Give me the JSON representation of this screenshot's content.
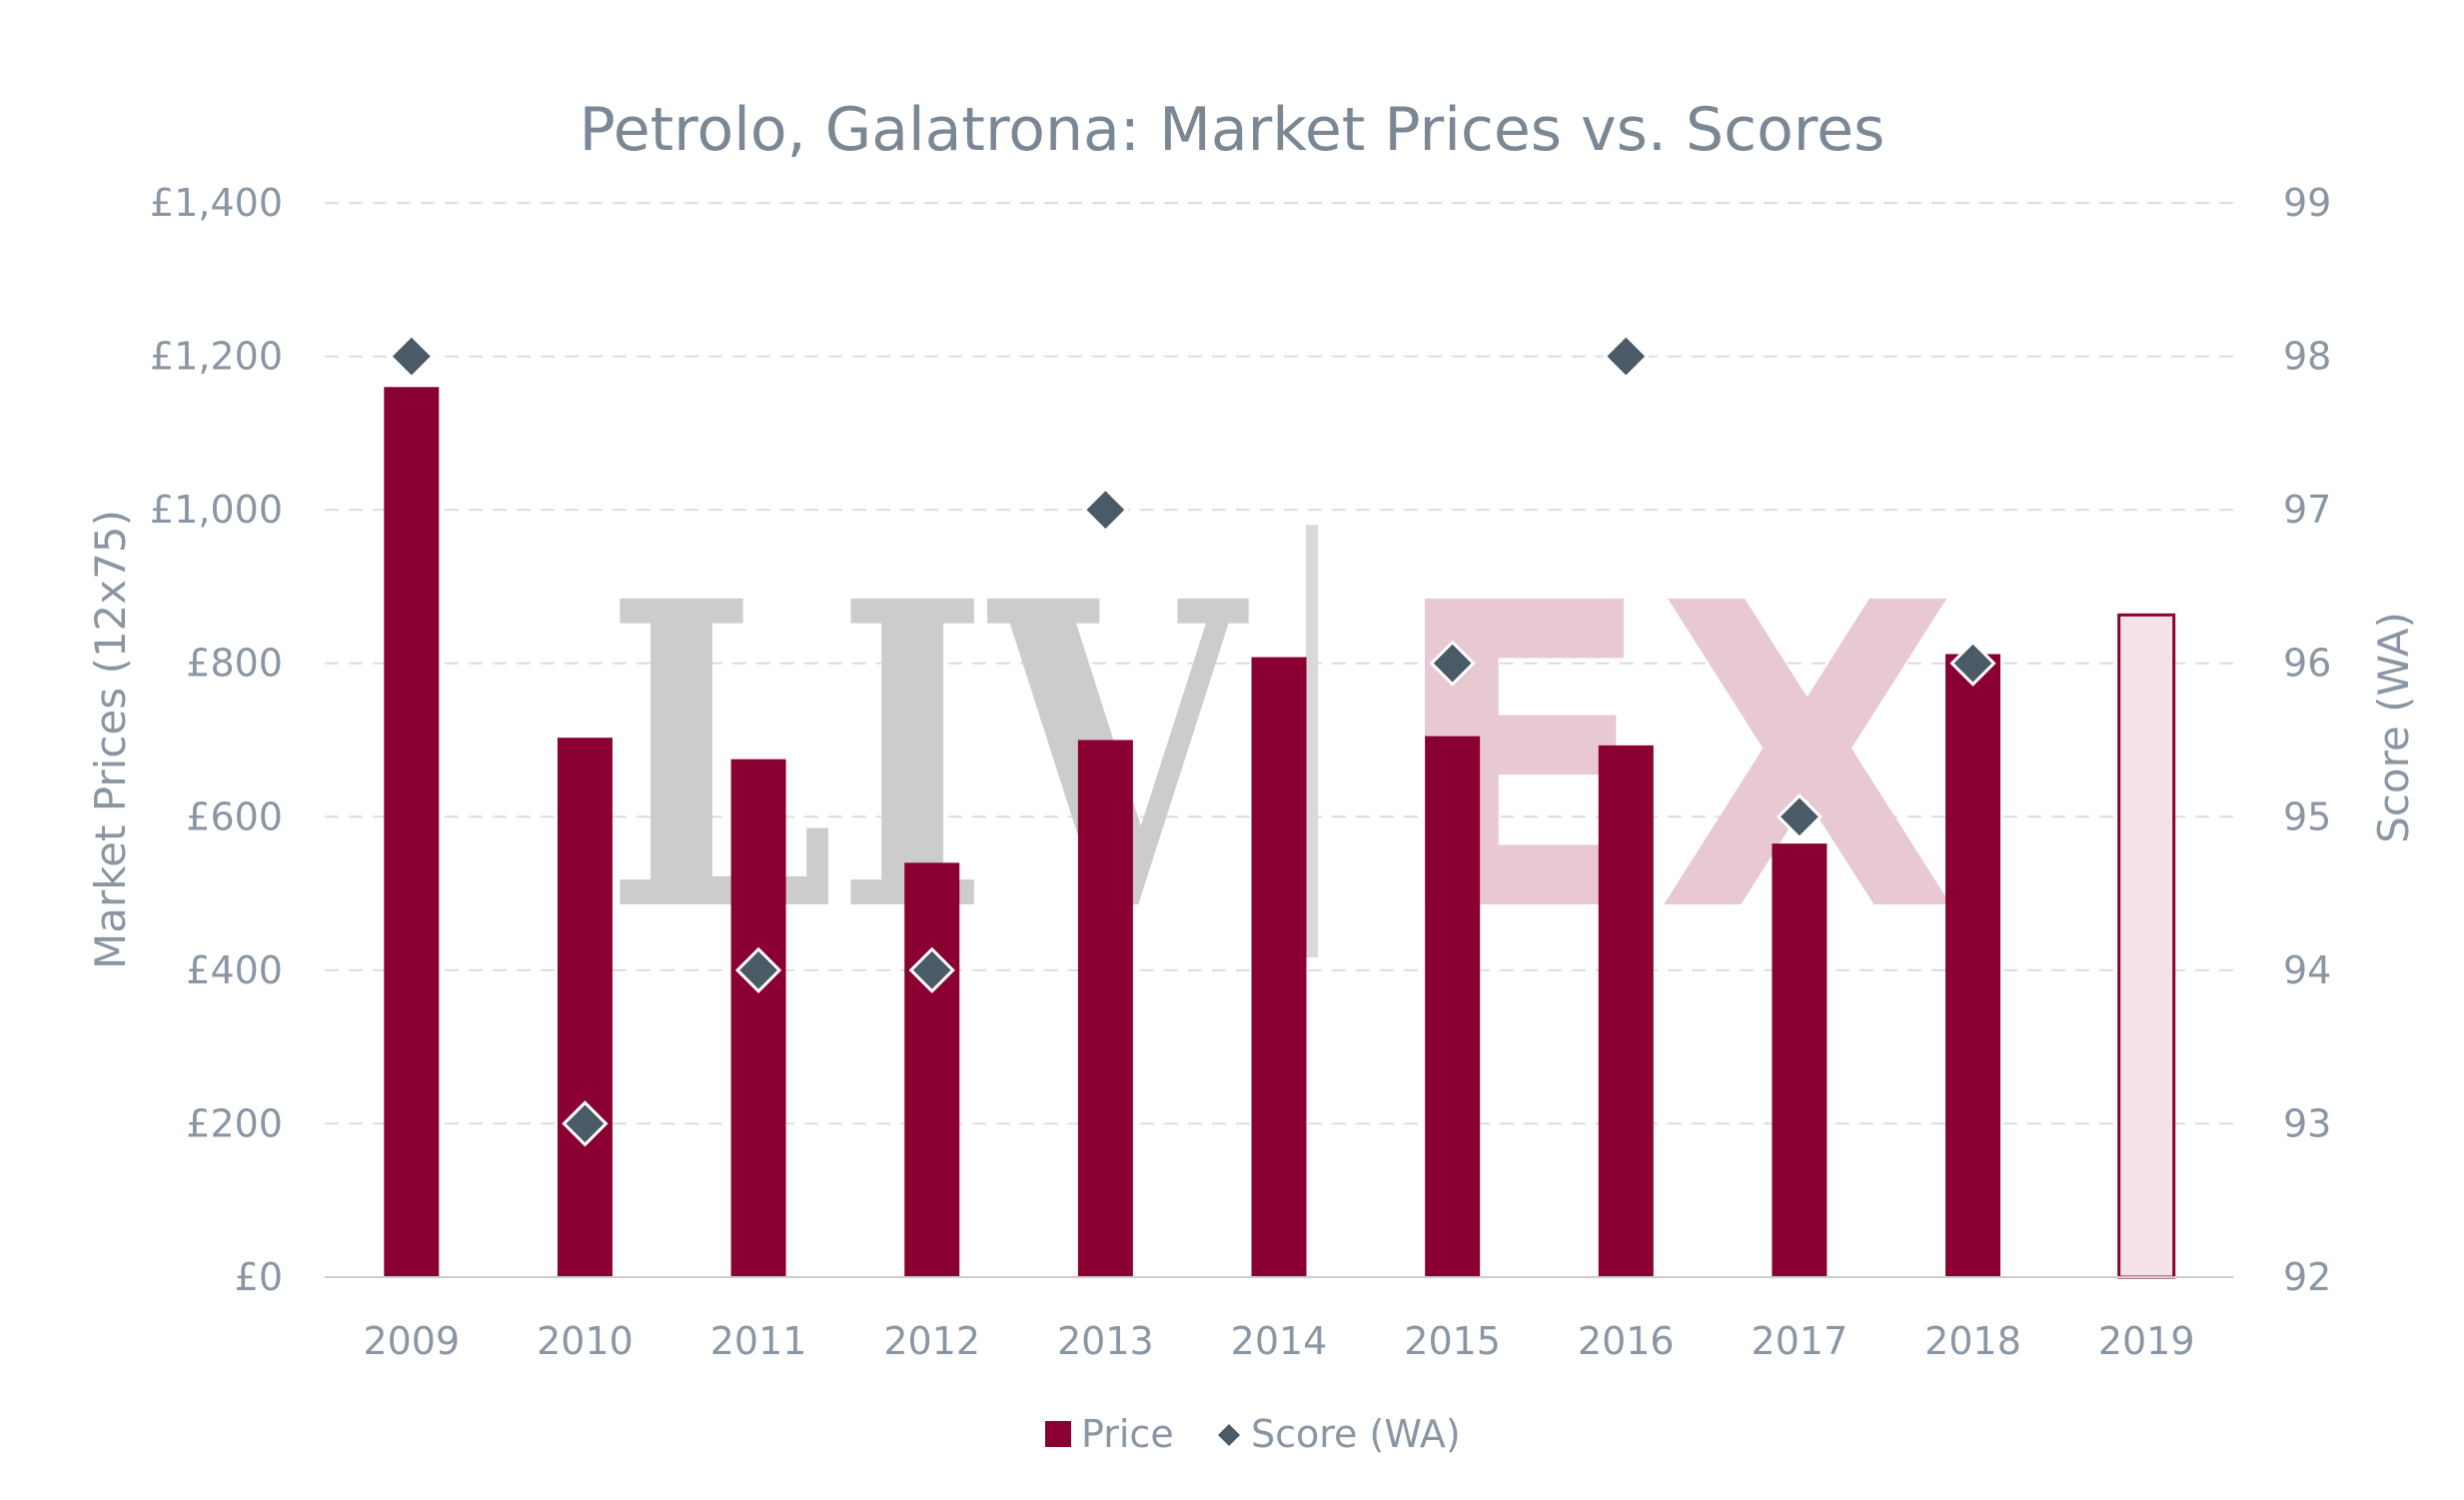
{
  "colors": {
    "bar": "#8a0033",
    "bar_projected_fill": "#f5e1e8",
    "bar_projected_stroke": "#8a0033",
    "score_marker": "#4a5a66",
    "score_marker_stroke": "#ffffff",
    "grid": "#dddddd",
    "text": "#8a96a3",
    "title": "#7a8794",
    "watermark_gray": "#cccccc",
    "watermark_pink": "#e8c8d3",
    "watermark_divider": "#d9d9d9"
  },
  "watermark": {
    "left": "LIV",
    "right": "EX",
    "icon": "liv-ex-logo"
  },
  "chart_data": {
    "type": "bar",
    "title": "Petrolo, Galatrona: Market Prices vs. Scores",
    "categories": [
      "2009",
      "2010",
      "2011",
      "2012",
      "2013",
      "2014",
      "2015",
      "2016",
      "2017",
      "2018",
      "2019"
    ],
    "ylabel": "Market Prices (12x75)",
    "y2label": "Score (WA)",
    "ylim": [
      0,
      1400
    ],
    "y2lim": [
      92,
      99
    ],
    "y_ticks": [
      0,
      200,
      400,
      600,
      800,
      1000,
      1200,
      1400
    ],
    "y_tick_labels": [
      "£0",
      "£200",
      "£400",
      "£600",
      "£800",
      "£1,000",
      "£1,200",
      "£1,400"
    ],
    "y2_ticks": [
      92,
      93,
      94,
      95,
      96,
      97,
      98,
      99
    ],
    "y2_tick_labels": [
      "92",
      "93",
      "94",
      "95",
      "96",
      "97",
      "98",
      "99"
    ],
    "grid": true,
    "legend_position": "bottom",
    "series": [
      {
        "name": "Price",
        "kind": "bar",
        "axis": "left",
        "values": [
          1160,
          703,
          675,
          540,
          700,
          808,
          705,
          693,
          565,
          812,
          863
        ],
        "projected": [
          false,
          false,
          false,
          false,
          false,
          false,
          false,
          false,
          false,
          false,
          true
        ]
      },
      {
        "name": "Score (WA)",
        "kind": "scatter",
        "marker": "diamond",
        "axis": "right",
        "values": [
          98,
          93,
          94,
          94,
          97,
          null,
          96,
          98,
          95,
          96,
          null
        ]
      }
    ]
  }
}
